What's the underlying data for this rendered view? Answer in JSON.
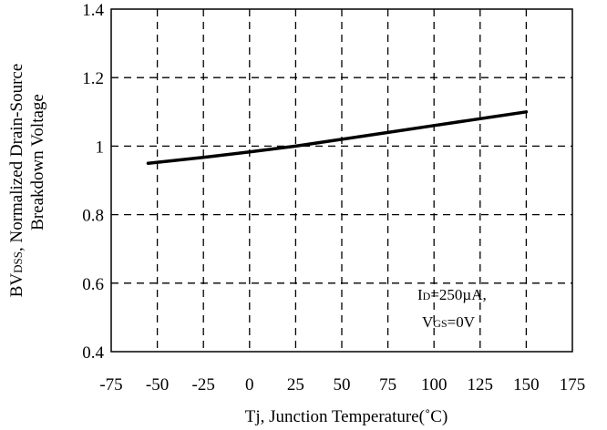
{
  "chart_data": {
    "type": "line",
    "title": "",
    "xlabel": "Tj, Junction Temperature(˚C)",
    "ylabel": {
      "line1_main": "BV",
      "line1_sub": "DSS",
      "line1_rest": ", Normalized Drain-Source",
      "line2": "Breakdown Voltage"
    },
    "xlim": [
      -75,
      175
    ],
    "ylim": [
      0.4,
      1.4
    ],
    "x_ticks": [
      -75,
      -50,
      -25,
      0,
      25,
      50,
      75,
      100,
      125,
      150,
      175
    ],
    "y_ticks": [
      0.4,
      0.6,
      0.8,
      1,
      1.2,
      1.4
    ],
    "x_tick_labels": [
      "-75",
      "-50",
      "-25",
      "0",
      "25",
      "50",
      "75",
      "100",
      "125",
      "150",
      "175"
    ],
    "y_tick_labels": [
      "0.4",
      "0.6",
      "0.8",
      "1",
      "1.2",
      "1.4"
    ],
    "grid": true,
    "grid_style": "dashed",
    "series": [
      {
        "x": [
          -55,
          -25,
          0,
          25,
          50,
          75,
          100,
          125,
          150
        ],
        "y": [
          0.95,
          0.967,
          0.983,
          1.0,
          1.02,
          1.04,
          1.06,
          1.08,
          1.1
        ],
        "color": "#000000"
      }
    ],
    "annotation": {
      "line1_pre": "I",
      "line1_sub": "D",
      "line1_post": "=250µA,",
      "line2_pre": "V",
      "line2_sub": "GS",
      "line2_post": "=0V"
    }
  }
}
